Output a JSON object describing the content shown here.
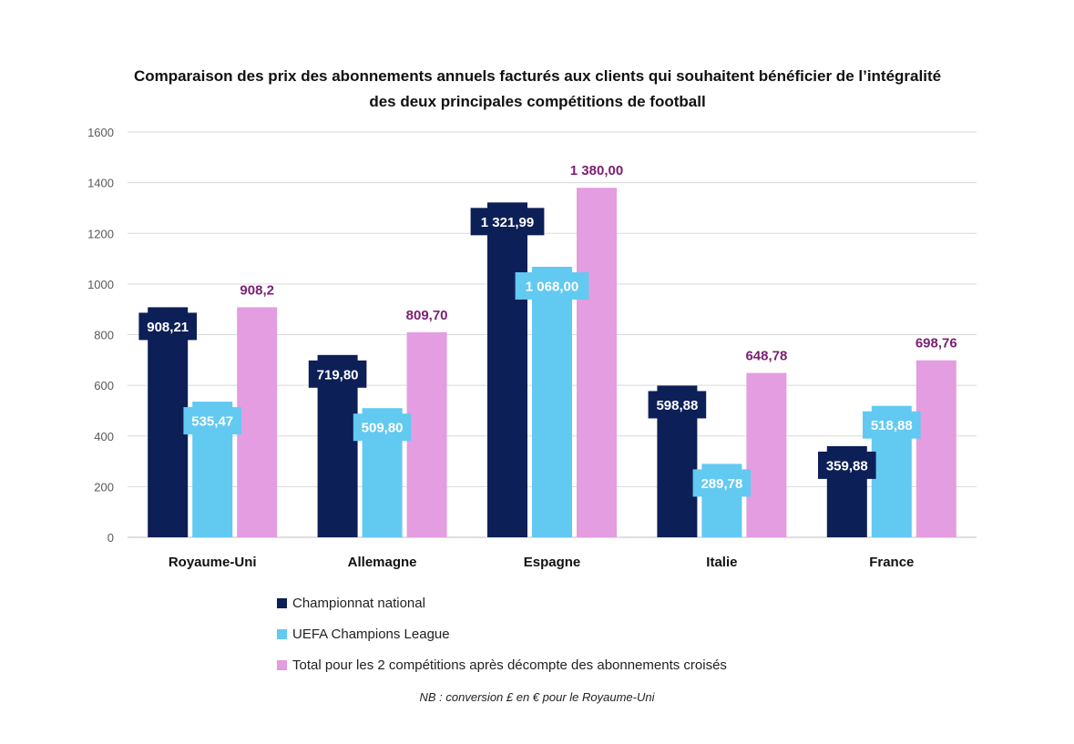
{
  "chart_data": {
    "type": "bar",
    "title_line1": "Comparaison des prix des abonnements annuels facturés aux clients qui souhaitent bénéficier de l’intégralité",
    "title_line2": "des deux principales compétitions de football",
    "categories": [
      "Royaume-Uni",
      "Allemagne",
      "Espagne",
      "Italie",
      "France"
    ],
    "series": [
      {
        "name": "Championnat national",
        "color": "#0d1f57",
        "label_color": "#ffffff",
        "values": [
          908.21,
          719.8,
          1321.99,
          598.88,
          359.88
        ],
        "labels": [
          "908,21",
          "719,80",
          "1 321,99",
          "598,88",
          "359,88"
        ],
        "label_style": "boxed"
      },
      {
        "name": "UEFA Champions League",
        "color": "#62c9f1",
        "label_color": "#ffffff",
        "values": [
          535.47,
          509.8,
          1068.0,
          289.78,
          518.88
        ],
        "labels": [
          "535,47",
          "509,80",
          "1 068,00",
          "289,78",
          "518,88"
        ],
        "label_style": "boxed"
      },
      {
        "name": "Total pour les 2 compétitions après décompte des abonnements croisés",
        "color": "#e39de0",
        "label_color": "#7b2073",
        "values": [
          908.2,
          809.7,
          1380.0,
          648.78,
          698.76
        ],
        "labels": [
          "908,2",
          "809,70",
          "1 380,00",
          "648,78",
          "698,76"
        ],
        "label_style": "above"
      }
    ],
    "ylim": [
      0,
      1600
    ],
    "yticks": [
      0,
      200,
      400,
      600,
      800,
      1000,
      1200,
      1400,
      1600
    ],
    "ytick_labels": [
      "0",
      "200",
      "400",
      "600",
      "800",
      "1000",
      "1200",
      "1400",
      "1600"
    ],
    "grid": true,
    "legend_position": "bottom-left",
    "xlabel": "",
    "ylabel": ""
  },
  "footnote": "NB : conversion £ en € pour le Royaume-Uni"
}
